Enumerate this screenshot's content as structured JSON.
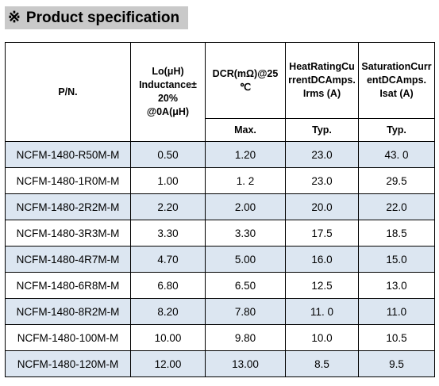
{
  "heading": {
    "mark": "※",
    "title": "Product specification"
  },
  "table": {
    "headers": {
      "pn": "P/N.",
      "lo": "Lo(μH)\nInductance±\n20%\n@0A(μH)",
      "dcr": "DCR(mΩ)@25\n℃",
      "heat": "HeatRatingCurrentDCAmps.\nIrms (A)",
      "sat": "SaturationCurrentDCAmps.\nIsat (A)",
      "dcr_sub": "Max.",
      "heat_sub": "Typ.",
      "sat_sub": "Typ."
    },
    "rows": [
      {
        "pn": "NCFM-1480-R50M-M",
        "lo": "0.50",
        "dcr": "1.20",
        "irms": "23.0",
        "isat": "43. 0"
      },
      {
        "pn": "NCFM-1480-1R0M-M",
        "lo": "1.00",
        "dcr": "1. 2",
        "irms": "23.0",
        "isat": "29.5"
      },
      {
        "pn": "NCFM-1480-2R2M-M",
        "lo": "2.20",
        "dcr": "2.00",
        "irms": "20.0",
        "isat": "22.0"
      },
      {
        "pn": "NCFM-1480-3R3M-M",
        "lo": "3.30",
        "dcr": "3.30",
        "irms": "17.5",
        "isat": "18.5"
      },
      {
        "pn": "NCFM-1480-4R7M-M",
        "lo": "4.70",
        "dcr": "5.00",
        "irms": "16.0",
        "isat": "15.0"
      },
      {
        "pn": "NCFM-1480-6R8M-M",
        "lo": "6.80",
        "dcr": "6.50",
        "irms": "12.5",
        "isat": "13.0"
      },
      {
        "pn": "NCFM-1480-8R2M-M",
        "lo": "8.20",
        "dcr": "7.80",
        "irms": "11. 0",
        "isat": "11.0"
      },
      {
        "pn": "NCFM-1480-100M-M",
        "lo": "10.00",
        "dcr": "9.80",
        "irms": "10.0",
        "isat": "10.5"
      },
      {
        "pn": "NCFM-1480-120M-M",
        "lo": "12.00",
        "dcr": "13.00",
        "irms": "8.5",
        "isat": "9.5"
      }
    ]
  },
  "colors": {
    "heading_bg": "#c9c9c9",
    "row_shade": "#dce6f1",
    "border": "#000000"
  }
}
